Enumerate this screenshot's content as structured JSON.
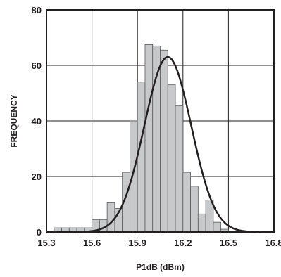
{
  "chart_data": {
    "type": "bar",
    "title": "",
    "xlabel": "P1dB (dBm)",
    "ylabel": "FREQUENCY",
    "xlim": [
      15.3,
      16.8
    ],
    "ylim": [
      0,
      80
    ],
    "x_ticks": [
      "15.3",
      "15.6",
      "15.9",
      "16.2",
      "16.5",
      "16.8"
    ],
    "y_ticks": [
      "0",
      "20",
      "40",
      "60",
      "80"
    ],
    "grid": true,
    "bin_width": 0.05,
    "bins": [
      {
        "start": 15.35,
        "value": 1.5
      },
      {
        "start": 15.4,
        "value": 1.5
      },
      {
        "start": 15.45,
        "value": 1.5
      },
      {
        "start": 15.5,
        "value": 1.5
      },
      {
        "start": 15.55,
        "value": 1.5
      },
      {
        "start": 15.6,
        "value": 4.5
      },
      {
        "start": 15.65,
        "value": 4.5
      },
      {
        "start": 15.7,
        "value": 10.5
      },
      {
        "start": 15.75,
        "value": 8.5
      },
      {
        "start": 15.8,
        "value": 21.5
      },
      {
        "start": 15.85,
        "value": 40
      },
      {
        "start": 15.9,
        "value": 54
      },
      {
        "start": 15.95,
        "value": 67.5
      },
      {
        "start": 16.0,
        "value": 67
      },
      {
        "start": 16.05,
        "value": 65.5
      },
      {
        "start": 16.1,
        "value": 53
      },
      {
        "start": 16.15,
        "value": 45.5
      },
      {
        "start": 16.2,
        "value": 21.5
      },
      {
        "start": 16.25,
        "value": 16.5
      },
      {
        "start": 16.3,
        "value": 6.5
      },
      {
        "start": 16.35,
        "value": 11.5
      },
      {
        "start": 16.4,
        "value": 3.5
      },
      {
        "start": 16.45,
        "value": 1
      }
    ],
    "fit_curve": {
      "type": "normal",
      "mean": 16.1,
      "sd": 0.155,
      "peak": 63
    },
    "colors": {
      "bar_fill": "#c8c9cb",
      "bar_stroke": "#58595b",
      "curve": "#231f20",
      "grid": "#231f20"
    }
  }
}
